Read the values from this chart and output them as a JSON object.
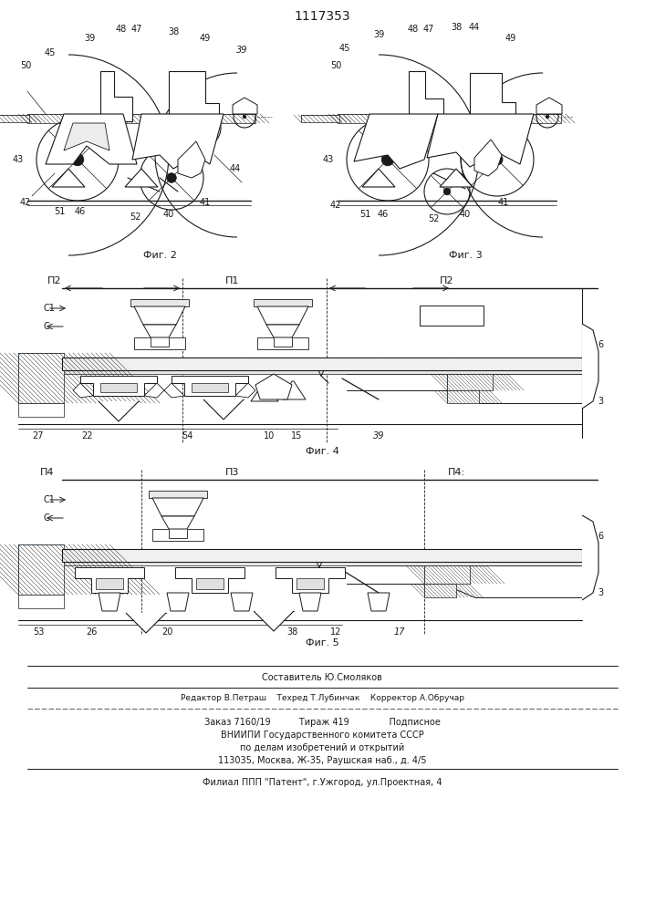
{
  "title": "1117353",
  "bg": "#ffffff",
  "lc": "#1a1a1a",
  "fig_labels": {
    "fig2": "Фиг. 2",
    "fig3": "Фиг. 3",
    "fig4": "Фиг. 4",
    "fig5": "Фиг. 5"
  }
}
